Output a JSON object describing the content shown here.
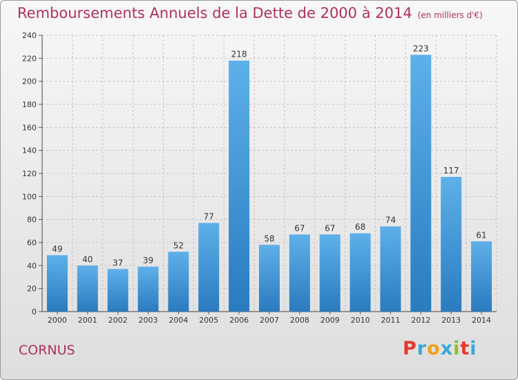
{
  "chart_data": {
    "type": "bar",
    "title": "Remboursements Annuels de la Dette de 2000 à 2014",
    "subtitle": "(en milliers d'€)",
    "categories": [
      "2000",
      "2001",
      "2002",
      "2003",
      "2004",
      "2005",
      "2006",
      "2007",
      "2008",
      "2009",
      "2010",
      "2011",
      "2012",
      "2013",
      "2014"
    ],
    "values": [
      49,
      40,
      37,
      39,
      52,
      77,
      218,
      58,
      67,
      67,
      68,
      74,
      223,
      117,
      61
    ],
    "ylim": [
      0,
      240
    ],
    "yticks": [
      0,
      20,
      40,
      60,
      80,
      100,
      120,
      140,
      160,
      180,
      200,
      220,
      240
    ],
    "grid": true,
    "xlabel": "",
    "ylabel": ""
  },
  "footer": {
    "town": "CORNUS",
    "logo": "Proxiti"
  },
  "colors": {
    "title": "#b03060",
    "bar_light": "#5eb0ea",
    "bar_dark": "#2a7bbf",
    "logo_letters": [
      "#e8382b",
      "#3aa7d8",
      "#f0a01c",
      "#3aa7d8",
      "#8fbf2b",
      "#e8382b",
      "#3aa7d8"
    ]
  }
}
